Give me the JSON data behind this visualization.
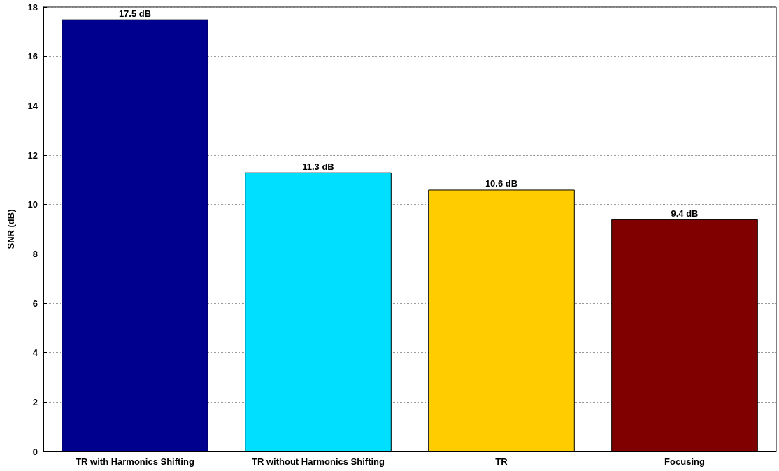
{
  "chart_data": {
    "type": "bar",
    "ylabel": "SNR (dB)",
    "categories": [
      "TR with Harmonics Shifting",
      "TR without Harmonics Shifting",
      "TR",
      "Focusing"
    ],
    "values": [
      17.5,
      11.3,
      10.6,
      9.4
    ],
    "colors": [
      "#00008f",
      "#00dfff",
      "#ffcc00",
      "#800000"
    ],
    "value_labels": [
      "17.5 dB",
      "11.3 dB",
      "10.6 dB",
      "9.4 dB"
    ],
    "ylim": [
      0,
      18
    ],
    "yticks": [
      0,
      2,
      4,
      6,
      8,
      10,
      12,
      14,
      16,
      18
    ],
    "grid": "y"
  }
}
